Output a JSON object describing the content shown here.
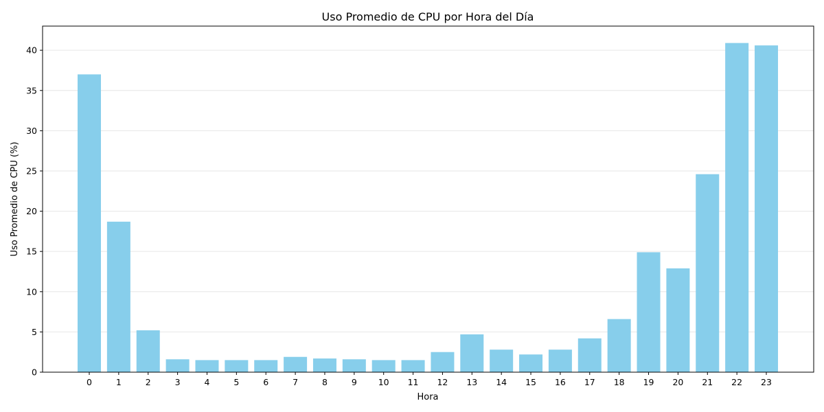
{
  "chart_data": {
    "type": "bar",
    "title": "Uso Promedio de CPU por Hora del Día",
    "xlabel": "Hora",
    "ylabel": "Uso Promedio de CPU (%)",
    "categories": [
      "0",
      "1",
      "2",
      "3",
      "4",
      "5",
      "6",
      "7",
      "8",
      "9",
      "10",
      "11",
      "12",
      "13",
      "14",
      "15",
      "16",
      "17",
      "18",
      "19",
      "20",
      "21",
      "22",
      "23"
    ],
    "values": [
      37.0,
      18.7,
      5.2,
      1.6,
      1.5,
      1.5,
      1.5,
      1.9,
      1.7,
      1.6,
      1.5,
      1.5,
      2.5,
      4.7,
      2.8,
      2.2,
      2.8,
      4.2,
      6.6,
      14.9,
      12.9,
      24.6,
      40.9,
      40.6
    ],
    "yticks": [
      "0",
      "5",
      "10",
      "15",
      "20",
      "25",
      "30",
      "35",
      "40"
    ],
    "ylim": [
      0,
      43
    ],
    "grid": "y",
    "bar_color": "#87CEEB",
    "grid_color": "#e6e6e6",
    "axis_color": "#000000"
  }
}
